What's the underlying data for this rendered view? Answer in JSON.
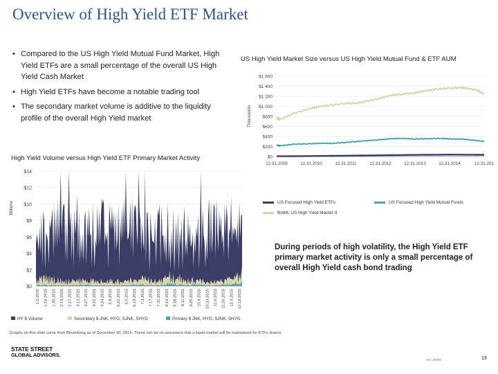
{
  "page": {
    "title": "Overview of High Yield ETF Market",
    "bullets": [
      "Compared to the US High Yield Mutual Fund Market, High Yield ETFs are a small percentage of the overall US High Yield Cash Market",
      "High Yield ETFs have become a notable trading tool",
      "The secondary market volume is additive to the liquidity profile of the overall High Yield market"
    ],
    "callout": "During periods of high volatility, the High Yield ETF primary market activity is only a small percentage of overall High Yield cash bond trading",
    "footnote": "Graphs on this slide come from Bloomberg as of December 30, 2015. These can be no assurance that a liquid market will be maintained for ETFs shares.",
    "logo": {
      "line1": "STATE STREET",
      "line2": "GLOBAL ADVISORS."
    },
    "code": "IHC-20009",
    "page_number": "13"
  },
  "chart_data": [
    {
      "type": "line",
      "title": "US High Yield Market Size versus US High Yield Mutual Fund & ETF AUM",
      "ylabel": "Thousands",
      "y_tick_labels": [
        "$0",
        "$200",
        "$400",
        "$600",
        "$800",
        "$1 000",
        "$1 200",
        "$1 400",
        "$1 600"
      ],
      "ylim": [
        0,
        1600
      ],
      "x_tick_labels": [
        "12.31.2009",
        "12.31.2010",
        "12.31.2011",
        "12.31.2012",
        "12.31.2013",
        "12.31.2014",
        "12.31.201"
      ],
      "xlim": [
        0,
        6
      ],
      "series": [
        {
          "name": "US Focused High Yield ETFs",
          "color": "#3a3d66",
          "x": [
            0,
            0.5,
            1,
            1.5,
            2,
            2.5,
            3,
            3.5,
            4,
            4.5,
            5,
            5.5,
            6
          ],
          "values": [
            5,
            7,
            10,
            13,
            17,
            21,
            25,
            29,
            32,
            35,
            38,
            36,
            34
          ]
        },
        {
          "name": "US Focused High Yield Mutual Funds",
          "color": "#4fa4a8",
          "x": [
            0,
            0.1,
            0.5,
            1,
            1.3,
            1.6,
            2,
            2.5,
            3,
            3.3,
            3.6,
            4,
            4.4,
            4.8,
            5,
            5.4,
            5.7,
            6
          ],
          "values": [
            225,
            215,
            245,
            255,
            265,
            262,
            280,
            310,
            335,
            355,
            360,
            350,
            355,
            360,
            350,
            345,
            325,
            300
          ]
        },
        {
          "name": "BAML US High Yield Master II",
          "color": "#d8d4ae",
          "x": [
            0,
            0.1,
            0.5,
            1,
            1.2,
            1.5,
            2,
            2.3,
            2.6,
            3,
            3.3,
            3.6,
            4,
            4.3,
            4.6,
            5,
            5.3,
            5.5,
            5.8,
            6
          ],
          "values": [
            770,
            740,
            860,
            960,
            990,
            1020,
            1060,
            1060,
            1100,
            1160,
            1220,
            1240,
            1270,
            1310,
            1340,
            1360,
            1370,
            1360,
            1320,
            1240
          ]
        }
      ]
    },
    {
      "type": "area",
      "title": "High Yield Volume versus High Yield ETF Primary Market Activity",
      "ylabel": "Billions",
      "y_tick_labels": [
        "$0",
        "$2",
        "$4",
        "$6",
        "$8",
        "$10",
        "$12",
        "$14"
      ],
      "ylim": [
        0,
        14
      ],
      "categories": [
        "1.2.2015",
        "1.16.2015",
        "1.30.2015",
        "2.13.2015",
        "2.27.2015",
        "3.13.2015",
        "3.27.2015",
        "4.10.2015",
        "4.24.2015",
        "5.8.2015",
        "5.22.2015",
        "6.5.2015",
        "6.19.2015",
        "7.3.2015",
        "7.17.2015",
        "7.31.2015",
        "8.14.2015",
        "8.28.2015",
        "9.11.2015",
        "9.25.2015",
        "10.9.2015",
        "10.23.2015",
        "11.6.2015",
        "11.20.2015",
        "12.4.2015",
        "12.18.2015"
      ],
      "series": [
        {
          "name": "HY $ Volume",
          "color": "#3a3d66",
          "values": [
            7.8,
            8.3,
            8.6,
            8.4,
            8.8,
            9.2,
            8.6,
            8.2,
            8.7,
            8.6,
            8.1,
            8.4,
            8.6,
            7.6,
            7.7,
            8.2,
            7.9,
            7.0,
            7.5,
            7.7,
            8.3,
            8.5,
            8.9,
            8.6,
            9.2,
            8.7
          ]
        },
        {
          "name": "Secondary $ JNK, HYG, SJNK, SHYG",
          "color": "#d8d4ae",
          "values": [
            0.8,
            1.0,
            0.9,
            0.7,
            0.6,
            0.7,
            0.9,
            0.6,
            0.6,
            0.7,
            0.6,
            0.9,
            0.9,
            1.0,
            0.8,
            0.7,
            1.3,
            1.2,
            0.8,
            1.0,
            0.9,
            0.6,
            0.7,
            0.8,
            1.4,
            2.4
          ]
        },
        {
          "name": "Primary $ JNK, HYG, SJNK, SHYG",
          "color": "#4fa4a8",
          "values": [
            0.1,
            0.2,
            0.1,
            0.1,
            0.1,
            0.1,
            0.2,
            0.1,
            0.1,
            0.1,
            0.1,
            0.2,
            0.2,
            0.3,
            0.1,
            0.1,
            0.3,
            0.3,
            0.1,
            0.2,
            0.2,
            0.1,
            0.1,
            0.2,
            0.3,
            0.6
          ]
        }
      ]
    }
  ]
}
